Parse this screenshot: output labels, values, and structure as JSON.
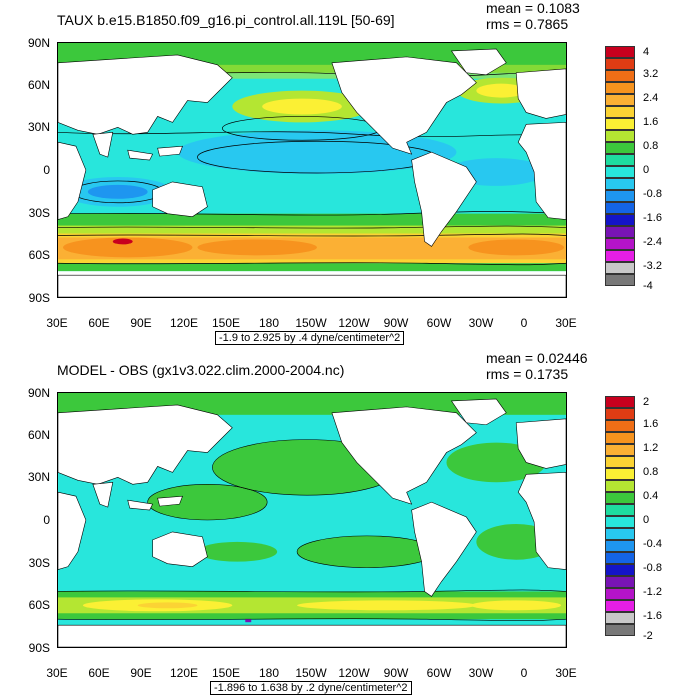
{
  "panels": [
    {
      "title": "TAUX b.e15.B1850.f09_g16.pi_control.all.119L [50-69]",
      "mean_text": "mean = 0.1083",
      "rms_text": "rms = 0.7865",
      "info_text": "-1.9 to 2.925 by .4 dyne/centimeter^2",
      "lat_labels": [
        "90N",
        "60N",
        "30N",
        "0",
        "30S",
        "60S",
        "90S"
      ],
      "lon_labels": [
        "30E",
        "60E",
        "90E",
        "120E",
        "150E",
        "180",
        "150W",
        "120W",
        "90W",
        "60W",
        "30W",
        "0",
        "30E"
      ],
      "colorbar": {
        "labels": [
          "4",
          "3.2",
          "2.4",
          "1.6",
          "0.8",
          "0",
          "-0.8",
          "-1.6",
          "-2.4",
          "-3.2",
          "-4"
        ],
        "colors": [
          "#c8001e",
          "#e03c14",
          "#ef6e16",
          "#f7931e",
          "#fbb034",
          "#fbd334",
          "#fbf034",
          "#b4e632",
          "#3cc83c",
          "#1edca0",
          "#28e6dc",
          "#28c8f0",
          "#1e96f0",
          "#1464e6",
          "#1414c8",
          "#7814b4",
          "#b414c8",
          "#e61ee6",
          "#c8c8c8",
          "#787878"
        ]
      }
    },
    {
      "title": "MODEL - OBS (gx1v3.022.clim.2000-2004.nc)",
      "mean_text": "mean = 0.02446",
      "rms_text": "rms = 0.1735",
      "info_text": "-1.896 to 1.638 by .2 dyne/centimeter^2",
      "lat_labels": [
        "90N",
        "60N",
        "30N",
        "0",
        "30S",
        "60S",
        "90S"
      ],
      "lon_labels": [
        "30E",
        "60E",
        "90E",
        "120E",
        "150E",
        "180",
        "150W",
        "120W",
        "90W",
        "60W",
        "30W",
        "0",
        "30E"
      ],
      "colorbar": {
        "labels": [
          "2",
          "1.6",
          "1.2",
          "0.8",
          "0.4",
          "0",
          "-0.4",
          "-0.8",
          "-1.2",
          "-1.6",
          "-2"
        ],
        "colors": [
          "#c8001e",
          "#e03c14",
          "#ef6e16",
          "#f7931e",
          "#fbb034",
          "#fbd334",
          "#fbf034",
          "#b4e632",
          "#3cc83c",
          "#1edca0",
          "#28e6dc",
          "#28c8f0",
          "#1e96f0",
          "#1464e6",
          "#1414c8",
          "#7814b4",
          "#b414c8",
          "#e61ee6",
          "#c8c8c8",
          "#787878"
        ]
      }
    }
  ]
}
